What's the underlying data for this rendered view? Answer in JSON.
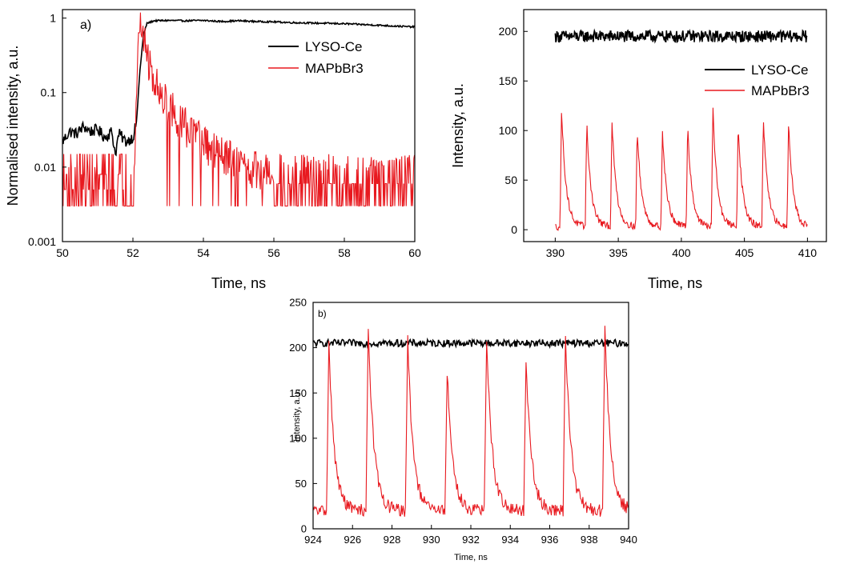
{
  "chart_data": [
    {
      "id": "a",
      "type": "line",
      "panel_label": "a)",
      "xlabel": "Time, ns",
      "ylabel": "Normalised intensity, a.u.",
      "xlim": [
        50,
        60
      ],
      "ylim": [
        0.001,
        1.3
      ],
      "yscale": "log",
      "xticks": [
        "50",
        "52",
        "54",
        "56",
        "58",
        "60"
      ],
      "yticks": [
        "0.001",
        "0.01",
        "0.1",
        "1"
      ],
      "legend_position": "upper-right",
      "series": [
        {
          "name": "LYSO-Ce",
          "color": "#000000",
          "x": [
            50.0,
            50.2,
            50.4,
            50.6,
            50.8,
            51.0,
            51.2,
            51.4,
            51.5,
            51.6,
            51.8,
            52.0,
            52.1,
            52.2,
            52.3,
            52.4,
            52.6,
            53.0,
            53.5,
            54.0,
            54.5,
            55.0,
            55.5,
            56.0,
            56.5,
            57.0,
            57.5,
            58.0,
            58.5,
            59.0,
            59.5,
            60.0
          ],
          "y": [
            0.022,
            0.03,
            0.028,
            0.035,
            0.03,
            0.032,
            0.025,
            0.03,
            0.015,
            0.028,
            0.022,
            0.025,
            0.04,
            0.2,
            0.6,
            0.85,
            0.92,
            0.93,
            0.92,
            0.93,
            0.9,
            0.92,
            0.9,
            0.89,
            0.87,
            0.86,
            0.85,
            0.84,
            0.82,
            0.8,
            0.78,
            0.76
          ]
        },
        {
          "name": "MAPbBr3",
          "color": "#e8191f",
          "x": [
            52.05,
            52.1,
            52.15,
            52.2,
            52.25,
            52.3,
            52.4,
            52.5,
            52.6,
            52.8,
            53.0,
            53.3,
            53.6,
            54.0,
            54.5,
            55.0,
            55.5,
            56.0
          ],
          "y": [
            0.01,
            0.1,
            0.5,
            0.95,
            0.8,
            0.5,
            0.3,
            0.2,
            0.15,
            0.1,
            0.07,
            0.045,
            0.03,
            0.02,
            0.014,
            0.011,
            0.009,
            0.008
          ],
          "noise_floor_range": [
            0.003,
            0.015
          ]
        }
      ]
    },
    {
      "id": "top-right",
      "type": "line",
      "panel_label": "",
      "xlabel": "Time, ns",
      "ylabel": "Intensity, a.u.",
      "xlim": [
        387.5,
        411.5
      ],
      "ylim": [
        -12,
        222
      ],
      "xticks": [
        "390",
        "395",
        "400",
        "405",
        "410"
      ],
      "yticks": [
        "0",
        "50",
        "100",
        "150",
        "200"
      ],
      "legend_position": "upper-right",
      "series": [
        {
          "name": "LYSO-Ce",
          "color": "#000000",
          "x_range": [
            390,
            410
          ],
          "y_mean": 195,
          "y_noise": 6
        },
        {
          "name": "MAPbBr3",
          "color": "#e8191f",
          "x_range": [
            390,
            410
          ],
          "baseline": 3,
          "peak_times": [
            390.5,
            392.5,
            394.5,
            396.5,
            398.5,
            400.5,
            402.5,
            404.5,
            406.5,
            408.5
          ],
          "peak_values": [
            123,
            107,
            108,
            100,
            99,
            105,
            123,
            106,
            113,
            111
          ],
          "decay_ns": 0.35
        }
      ]
    },
    {
      "id": "b",
      "type": "line",
      "panel_label": "b)",
      "xlabel": "Time, ns",
      "ylabel": "Intensity, a.u.",
      "xlim": [
        924,
        940
      ],
      "ylim": [
        0,
        250
      ],
      "xticks": [
        "924",
        "926",
        "928",
        "930",
        "932",
        "934",
        "936",
        "938",
        "940"
      ],
      "yticks": [
        "0",
        "50",
        "100",
        "150",
        "200",
        "250"
      ],
      "legend_position": "none",
      "series": [
        {
          "name": "LYSO-Ce",
          "color": "#000000",
          "x_range": [
            924,
            940
          ],
          "y_mean": 205,
          "y_noise": 4
        },
        {
          "name": "MAPbBr3",
          "color": "#e8191f",
          "x_range": [
            924,
            940
          ],
          "baseline": 20,
          "peak_times": [
            924.8,
            926.8,
            928.8,
            930.8,
            932.8,
            934.8,
            936.8,
            938.8
          ],
          "peak_values": [
            203,
            225,
            207,
            175,
            210,
            182,
            215,
            225
          ],
          "decay_ns": 0.28
        }
      ]
    }
  ]
}
